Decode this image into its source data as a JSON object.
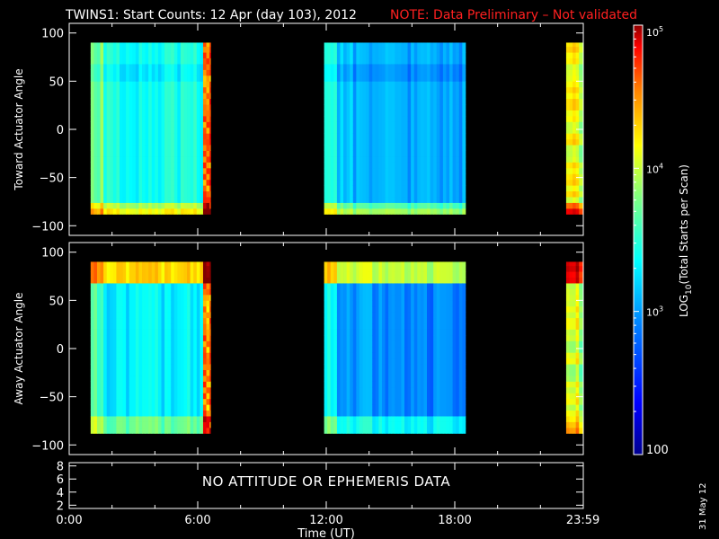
{
  "title": "TWINS1: Start Counts: 12 Apr (day 103), 2012",
  "note": "NOTE: Data Preliminary – Not validated",
  "date_stamp": "31 May 12",
  "no_data_message": "NO ATTITUDE OR EPHEMERIS DATA",
  "xlabel": "Time (UT)",
  "colorbar": {
    "label": "LOG10(Total Starts per Scan)",
    "label_base": "LOG",
    "label_sub": "10",
    "label_rest": "(Total Starts per Scan)",
    "ticks": [
      {
        "value": 100,
        "text": "100"
      },
      {
        "value": 1000,
        "text": "10",
        "sup": "3"
      },
      {
        "value": 10000,
        "text": "10",
        "sup": "4"
      },
      {
        "value": 100000,
        "text": "10",
        "sup": "5"
      }
    ],
    "min": 100,
    "max": 100000,
    "scale": "log",
    "colors": [
      "#00007f",
      "#0000ff",
      "#007fff",
      "#00ffff",
      "#7fff7f",
      "#ffff00",
      "#ff7f00",
      "#ff0000",
      "#7f0000"
    ]
  },
  "chart_data": [
    {
      "type": "heatmap",
      "panel": "toward",
      "ylabel": "Toward Actuator Angle",
      "ylim": [
        -110,
        110
      ],
      "yticks": [
        "100",
        "50",
        "0",
        "−50",
        "−100"
      ],
      "ytick_values": [
        100,
        50,
        0,
        -50,
        -100
      ],
      "data_ylim": [
        -88,
        90
      ],
      "data_segments_hours": [
        [
          1.0,
          6.6
        ],
        [
          11.9,
          18.5
        ],
        [
          23.2,
          24.0
        ]
      ],
      "xlim_hours": [
        0,
        24
      ],
      "background_level": 1500,
      "edge_features": "high counts near -88 deg at segment starts; saturated stripes near 6.5 h"
    },
    {
      "type": "heatmap",
      "panel": "away",
      "ylabel": "Away Actuator Angle",
      "ylim": [
        -110,
        110
      ],
      "yticks": [
        "100",
        "50",
        "0",
        "−50",
        "−100"
      ],
      "ytick_values": [
        100,
        50,
        0,
        -50,
        -100
      ],
      "data_ylim": [
        -88,
        90
      ],
      "data_segments_hours": [
        [
          1.0,
          6.6
        ],
        [
          11.9,
          18.5
        ],
        [
          23.2,
          24.0
        ]
      ],
      "xlim_hours": [
        0,
        24
      ],
      "background_level": 1200,
      "edge_features": "high counts near 80-90 deg at segment starts; saturated stripes near 6.5 h"
    },
    {
      "type": "line",
      "panel": "attitude",
      "ylim": [
        1.5,
        8.5
      ],
      "yticks": [
        "8",
        "6",
        "4",
        "2"
      ],
      "ytick_values": [
        8,
        6,
        4,
        2
      ],
      "xticks": [
        "0:00",
        "6:00",
        "12:00",
        "18:00",
        "23:59"
      ],
      "xtick_hours": [
        0,
        6,
        12,
        18,
        23.983
      ]
    }
  ]
}
